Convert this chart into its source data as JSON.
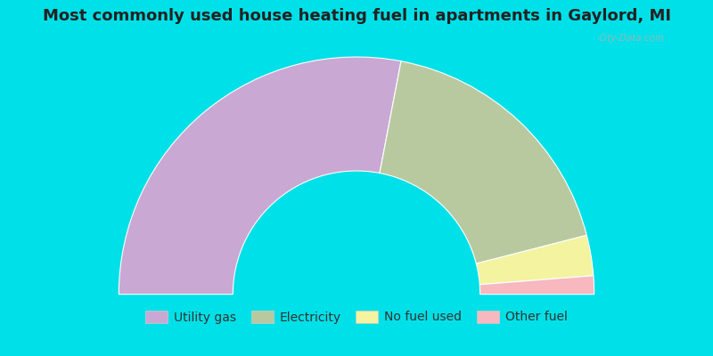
{
  "title": "Most commonly used house heating fuel in apartments in Gaylord, MI",
  "slices": [
    {
      "label": "Utility gas",
      "value": 56.0,
      "color": "#c9a8d4"
    },
    {
      "label": "Electricity",
      "value": 36.0,
      "color": "#b8c9a0"
    },
    {
      "label": "No fuel used",
      "value": 5.5,
      "color": "#f3f3a0"
    },
    {
      "label": "Other fuel",
      "value": 2.5,
      "color": "#f7b8c0"
    }
  ],
  "bg_color": "#c8ede6",
  "title_fontsize": 13,
  "legend_fontsize": 10,
  "watermark": "City-Data.com",
  "cyan_border": "#00e0e8",
  "outer_r": 1.0,
  "inner_r": 0.52
}
